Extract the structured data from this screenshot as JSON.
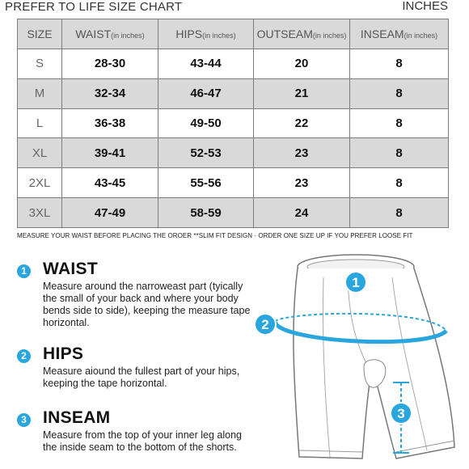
{
  "header": {
    "title": "PREFER TO LIFE SIZE CHART",
    "unit": "INCHES"
  },
  "table": {
    "columns": [
      {
        "label": "SIZE",
        "sub": ""
      },
      {
        "label": "WAIST",
        "sub": "(in inches)"
      },
      {
        "label": "HIPS",
        "sub": "(in inches)"
      },
      {
        "label": "OUTSEAM",
        "sub": "(in inches)"
      },
      {
        "label": "INSEAM",
        "sub": "(in inches)"
      }
    ],
    "rows": [
      [
        "S",
        "28-30",
        "43-44",
        "20",
        "8"
      ],
      [
        "M",
        "32-34",
        "46-47",
        "21",
        "8"
      ],
      [
        "L",
        "36-38",
        "49-50",
        "22",
        "8"
      ],
      [
        "XL",
        "39-41",
        "52-53",
        "23",
        "8"
      ],
      [
        "2XL",
        "43-45",
        "55-56",
        "23",
        "8"
      ],
      [
        "3XL",
        "47-49",
        "58-59",
        "24",
        "8"
      ]
    ]
  },
  "note": "MEASURE YOUR WAIST BEFORE PLACING THE OROER  **SLIM FIT DESIGN · ORDER ONE SIZE UP IF YOU PREFER LOOSE FIT",
  "steps": [
    {
      "number": "1",
      "title": "WAIST",
      "lines": [
        "Measure around the narroweast part (tyically",
        "the small of your back and where your body",
        "bends side to side), keeping the measure tape",
        "horizontal."
      ]
    },
    {
      "number": "2",
      "title": "HIPS",
      "lines": [
        "Measure aiound the fullest part of your hips,",
        "keeping the tape horizontal."
      ]
    },
    {
      "number": "3",
      "title": "INSEAM",
      "lines": [
        "Measure from the top of your inner leg along",
        "the inside seam to the bottom of the shorts."
      ]
    }
  ],
  "diagram": {
    "markers": [
      "1",
      "2",
      "3"
    ],
    "accent": "#2aa6de"
  },
  "colors": {
    "accent": "#2aa6de",
    "header_row": "#d9d9d9",
    "border": "#7d7d7d"
  }
}
